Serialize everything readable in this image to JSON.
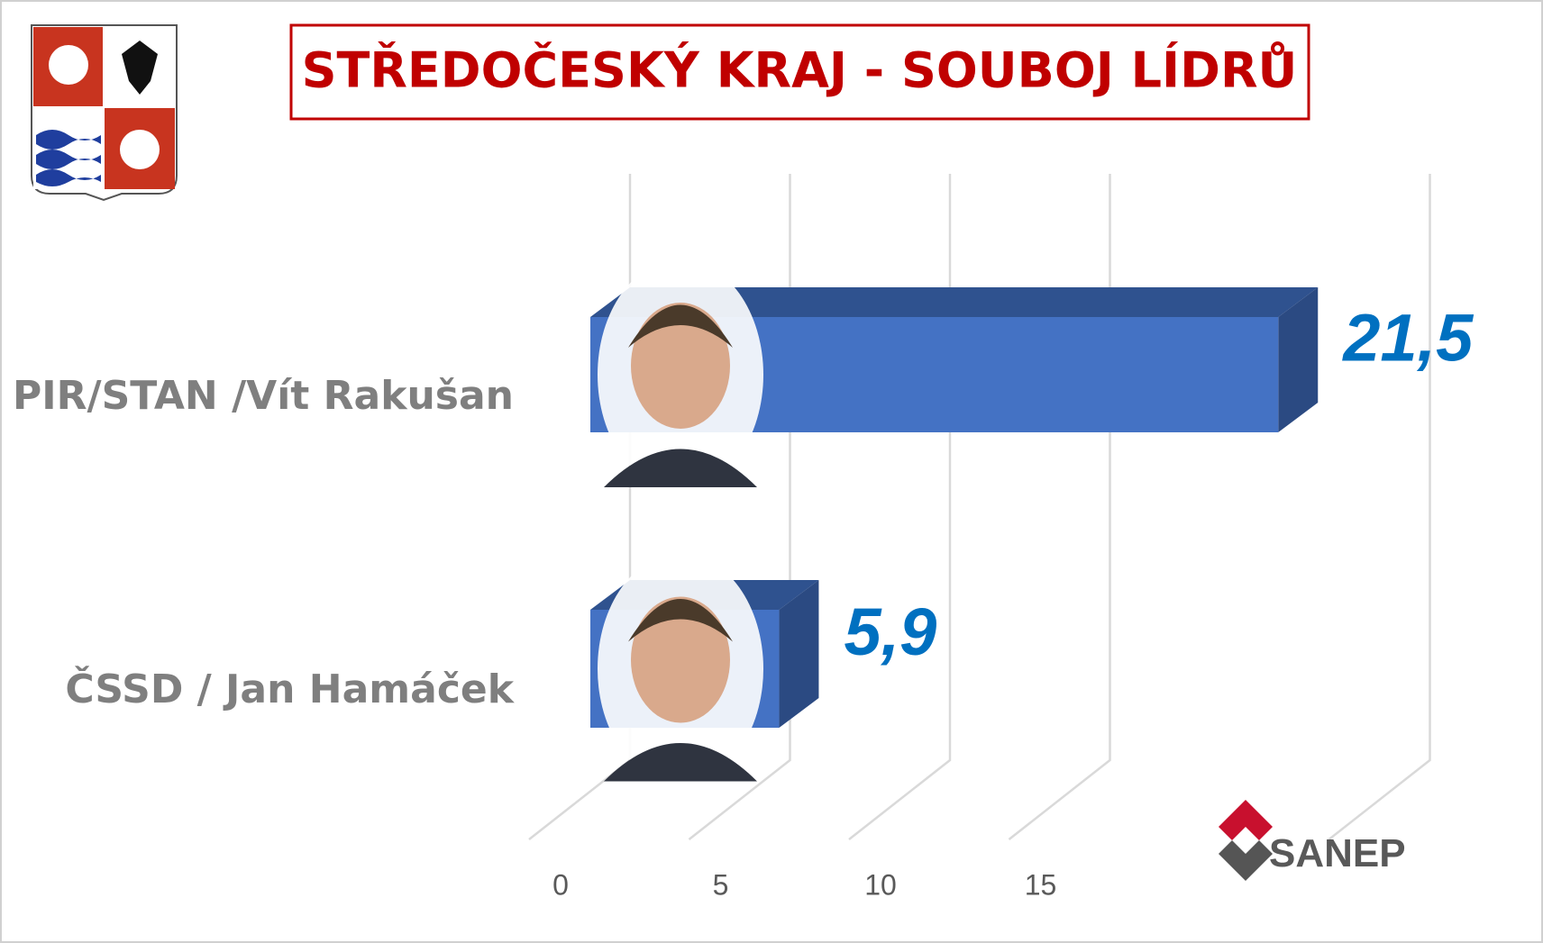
{
  "chart_data": {
    "type": "bar3d",
    "title": "STŘEDOČESKÝ KRAJ - SOUBOJ LÍDRŮ",
    "categories": [
      "PIR/STAN /Vít Rakušan",
      "ČSSD / Jan Hamáček"
    ],
    "values": [
      21.5,
      5.9
    ],
    "value_labels": [
      "21,5",
      "5,9"
    ],
    "color": "#4472c4",
    "value_label_color": "#0070c0",
    "xlim": [
      0,
      25
    ],
    "xticks": [
      0,
      5,
      10,
      15
    ],
    "grid": true
  },
  "logo": "SANEP"
}
